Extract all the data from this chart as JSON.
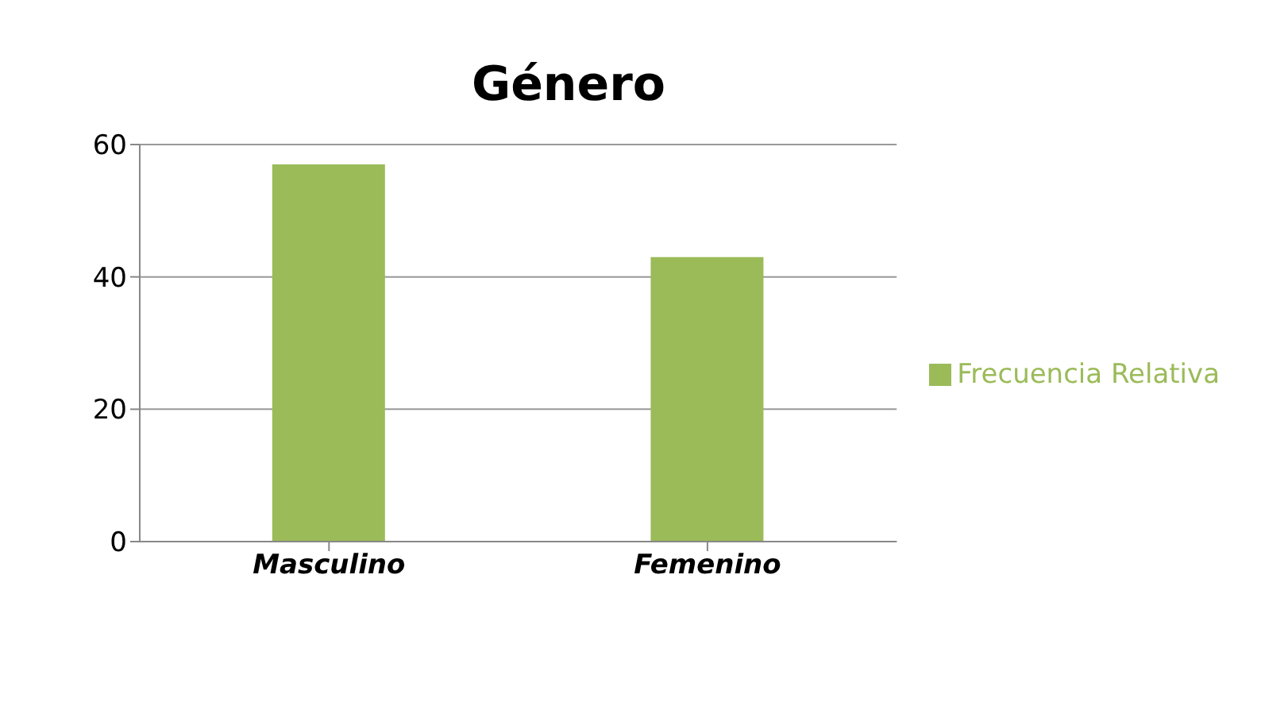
{
  "chart_data": {
    "type": "bar",
    "title": "Género",
    "categories": [
      "Masculino",
      "Femenino"
    ],
    "series": [
      {
        "name": "Frecuencia Relativa",
        "color": "#9bbb59",
        "values": [
          57,
          43
        ]
      }
    ],
    "ylim": [
      0,
      60
    ],
    "yticks": [
      0,
      20,
      40,
      60
    ],
    "grid": "y",
    "legend": "right"
  }
}
